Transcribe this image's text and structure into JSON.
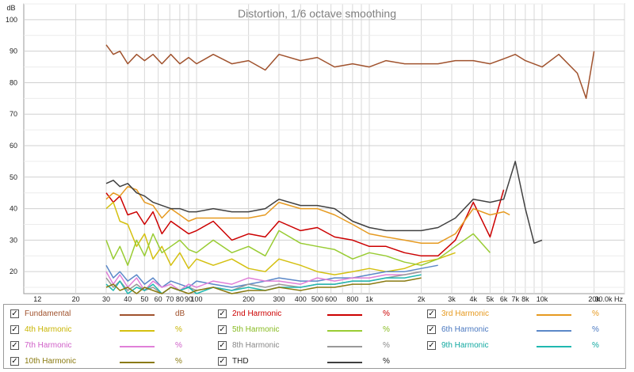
{
  "chart_data": {
    "type": "line",
    "title": "Distortion, 1/6 octave smoothing",
    "ylabel": "dB",
    "x_unit": "Hz",
    "x_scale": "log",
    "xlim": [
      10,
      30000
    ],
    "ylim": [
      13,
      105
    ],
    "grid": true,
    "x_ticks": [
      {
        "value": 12,
        "label": "12"
      },
      {
        "value": 20,
        "label": "20"
      },
      {
        "value": 30,
        "label": "30"
      },
      {
        "value": 40,
        "label": "40"
      },
      {
        "value": 50,
        "label": "50"
      },
      {
        "value": 60,
        "label": "60"
      },
      {
        "value": 70,
        "label": "70"
      },
      {
        "value": 80,
        "label": "80"
      },
      {
        "value": 90,
        "label": "90"
      },
      {
        "value": 100,
        "label": "100"
      },
      {
        "value": 200,
        "label": "200"
      },
      {
        "value": 300,
        "label": "300"
      },
      {
        "value": 400,
        "label": "400"
      },
      {
        "value": 500,
        "label": "500"
      },
      {
        "value": 600,
        "label": "600"
      },
      {
        "value": 800,
        "label": "800"
      },
      {
        "value": 1000,
        "label": "1k"
      },
      {
        "value": 2000,
        "label": "2k"
      },
      {
        "value": 3000,
        "label": "3k"
      },
      {
        "value": 4000,
        "label": "4k"
      },
      {
        "value": 5000,
        "label": "5k"
      },
      {
        "value": 6000,
        "label": "6k"
      },
      {
        "value": 7000,
        "label": "7k"
      },
      {
        "value": 8000,
        "label": "8k"
      },
      {
        "value": 10000,
        "label": "10k"
      },
      {
        "value": 20000,
        "label": "20k"
      },
      {
        "value": 30000,
        "label": "30.0k Hz"
      }
    ],
    "y_ticks": [
      {
        "value": 20,
        "label": "20"
      },
      {
        "value": 30,
        "label": "30"
      },
      {
        "value": 40,
        "label": "40"
      },
      {
        "value": 50,
        "label": "50"
      },
      {
        "value": 60,
        "label": "60"
      },
      {
        "value": 70,
        "label": "70"
      },
      {
        "value": 80,
        "label": "80"
      },
      {
        "value": 90,
        "label": "90"
      },
      {
        "value": 100,
        "label": "100"
      }
    ],
    "series": [
      {
        "name": "Fundamental",
        "unit": "dB",
        "color": "#a0522d",
        "x": [
          30,
          33,
          36,
          40,
          45,
          50,
          56,
          63,
          71,
          80,
          90,
          100,
          125,
          160,
          200,
          250,
          300,
          400,
          500,
          630,
          800,
          1000,
          1250,
          1600,
          2000,
          2500,
          3150,
          4000,
          5000,
          6300,
          7000,
          8000,
          10000,
          12500,
          16000,
          18000,
          20000
        ],
        "y": [
          92,
          89,
          90,
          86,
          89,
          87,
          89,
          86,
          89,
          86,
          88,
          86,
          89,
          86,
          87,
          84,
          89,
          87,
          88,
          85,
          86,
          85,
          87,
          86,
          86,
          86,
          87,
          87,
          86,
          88,
          89,
          87,
          85,
          89,
          83,
          75,
          90
        ]
      },
      {
        "name": "2nd Harmonic",
        "unit": "%",
        "color": "#cc0000",
        "x": [
          30,
          33,
          36,
          40,
          45,
          50,
          56,
          63,
          71,
          80,
          90,
          100,
          125,
          160,
          200,
          250,
          300,
          400,
          500,
          630,
          800,
          1000,
          1250,
          1600,
          2000,
          2500,
          3150,
          4000,
          5000,
          6000
        ],
        "y": [
          45,
          42,
          44,
          38,
          39,
          35,
          39,
          32,
          36,
          34,
          32,
          33,
          36,
          30,
          32,
          31,
          36,
          33,
          34,
          31,
          30,
          28,
          28,
          26,
          25,
          25,
          30,
          42,
          31,
          46
        ]
      },
      {
        "name": "3rd Harmonic",
        "unit": "%",
        "color": "#e69a20",
        "x": [
          30,
          33,
          36,
          40,
          45,
          50,
          56,
          63,
          71,
          80,
          90,
          100,
          125,
          160,
          200,
          250,
          300,
          400,
          500,
          630,
          800,
          1000,
          1250,
          1600,
          2000,
          2500,
          3150,
          4000,
          5000,
          6000,
          6500
        ],
        "y": [
          43,
          45,
          44,
          47,
          46,
          42,
          41,
          37,
          40,
          38,
          36,
          37,
          37,
          37,
          37,
          38,
          42,
          40,
          40,
          38,
          35,
          32,
          31,
          30,
          29,
          29,
          32,
          40,
          38,
          39,
          38
        ]
      },
      {
        "name": "4th Harmonic",
        "unit": "%",
        "color": "#d4c010",
        "x": [
          30,
          33,
          36,
          40,
          45,
          50,
          56,
          63,
          71,
          80,
          90,
          100,
          125,
          160,
          200,
          250,
          300,
          400,
          500,
          630,
          800,
          1000,
          1250,
          1600,
          2000,
          2500,
          3150
        ],
        "y": [
          40,
          42,
          36,
          35,
          28,
          32,
          24,
          28,
          22,
          26,
          21,
          24,
          22,
          24,
          21,
          20,
          24,
          22,
          20,
          19,
          20,
          21,
          20,
          21,
          23,
          24,
          26
        ]
      },
      {
        "name": "5th Harmonic",
        "unit": "%",
        "color": "#99cc33",
        "x": [
          30,
          33,
          36,
          40,
          45,
          50,
          56,
          63,
          71,
          80,
          90,
          100,
          125,
          160,
          200,
          250,
          300,
          400,
          500,
          630,
          800,
          1000,
          1250,
          1600,
          2000,
          2500,
          3150,
          4000,
          5000
        ],
        "y": [
          30,
          24,
          28,
          22,
          30,
          25,
          32,
          26,
          28,
          30,
          27,
          26,
          30,
          26,
          28,
          25,
          33,
          29,
          28,
          27,
          24,
          26,
          25,
          23,
          22,
          24,
          28,
          32,
          26
        ]
      },
      {
        "name": "6th Harmonic",
        "unit": "%",
        "color": "#5b88c8",
        "x": [
          30,
          33,
          36,
          40,
          45,
          50,
          56,
          63,
          71,
          80,
          90,
          100,
          125,
          160,
          200,
          250,
          300,
          400,
          500,
          630,
          800,
          1000,
          1250,
          1600,
          2000,
          2500
        ],
        "y": [
          22,
          18,
          20,
          17,
          19,
          16,
          18,
          15,
          17,
          16,
          15,
          17,
          16,
          15,
          16,
          17,
          18,
          17,
          17,
          18,
          18,
          19,
          20,
          20,
          21,
          22
        ]
      },
      {
        "name": "7th Harmonic",
        "unit": "%",
        "color": "#e080d8",
        "x": [
          30,
          33,
          36,
          40,
          45,
          50,
          56,
          63,
          71,
          80,
          90,
          100,
          125,
          160,
          200,
          250,
          300,
          400,
          500,
          630,
          800,
          1000,
          1250,
          1600,
          2000
        ],
        "y": [
          20,
          16,
          19,
          15,
          18,
          14,
          17,
          15,
          16,
          14,
          16,
          15,
          17,
          16,
          18,
          17,
          17,
          16,
          18,
          17,
          18,
          18,
          19,
          19,
          20
        ]
      },
      {
        "name": "8th Harmonic",
        "unit": "%",
        "color": "#999999",
        "x": [
          30,
          33,
          36,
          40,
          45,
          50,
          56,
          63,
          71,
          80,
          90,
          100,
          125,
          160,
          200,
          250,
          300,
          400,
          500,
          630,
          800,
          1000,
          1250,
          1600,
          2000
        ],
        "y": [
          18,
          15,
          17,
          14,
          16,
          14,
          15,
          13,
          15,
          14,
          15,
          14,
          15,
          14,
          16,
          15,
          16,
          15,
          16,
          16,
          17,
          17,
          18,
          19,
          20
        ]
      },
      {
        "name": "9th Harmonic",
        "unit": "%",
        "color": "#20b8b0",
        "x": [
          30,
          33,
          36,
          40,
          45,
          50,
          56,
          63,
          71,
          80,
          90,
          100,
          125,
          160,
          200,
          250,
          300,
          400,
          500,
          630,
          800,
          1000,
          1250,
          1600,
          2000
        ],
        "y": [
          16,
          14,
          17,
          13,
          15,
          14,
          16,
          13,
          15,
          14,
          15,
          13,
          15,
          14,
          15,
          14,
          15,
          15,
          16,
          16,
          17,
          17,
          18,
          18,
          19
        ]
      },
      {
        "name": "10th Harmonic",
        "unit": "%",
        "color": "#8a7a10",
        "x": [
          30,
          33,
          36,
          40,
          45,
          50,
          56,
          63,
          71,
          80,
          90,
          100,
          125,
          160,
          200,
          250,
          300,
          400,
          500,
          630,
          800,
          1000,
          1250,
          1600,
          2000
        ],
        "y": [
          15,
          16,
          14,
          15,
          13,
          15,
          14,
          13,
          15,
          14,
          13,
          14,
          15,
          13,
          14,
          14,
          15,
          14,
          15,
          15,
          16,
          16,
          17,
          17,
          18
        ]
      },
      {
        "name": "THD",
        "unit": "%",
        "color": "#404040",
        "x": [
          30,
          33,
          36,
          40,
          45,
          50,
          56,
          63,
          71,
          80,
          90,
          100,
          125,
          160,
          200,
          250,
          300,
          400,
          500,
          630,
          800,
          1000,
          1250,
          1600,
          2000,
          2500,
          3150,
          4000,
          5000,
          6000,
          7000,
          8000,
          9000,
          10000
        ],
        "y": [
          48,
          49,
          47,
          48,
          45,
          44,
          42,
          41,
          40,
          40,
          39,
          39,
          40,
          39,
          39,
          40,
          43,
          41,
          41,
          40,
          36,
          34,
          33,
          33,
          33,
          34,
          37,
          43,
          42,
          43,
          55,
          40,
          29,
          30
        ]
      }
    ]
  },
  "legend": {
    "items": [
      {
        "label": "Fundamental",
        "unit": "dB",
        "checked": "✓",
        "color": "#a0522d",
        "text_color": "#a0522d"
      },
      {
        "label": "2nd Harmonic",
        "unit": "%",
        "checked": "✓",
        "color": "#cc0000",
        "text_color": "#cc0000"
      },
      {
        "label": "3rd Harmonic",
        "unit": "%",
        "checked": "✓",
        "color": "#e69a20",
        "text_color": "#e69a20"
      },
      {
        "label": "4th Harmonic",
        "unit": "%",
        "checked": "✓",
        "color": "#d4c010",
        "text_color": "#c8b400"
      },
      {
        "label": "5th Harmonic",
        "unit": "%",
        "checked": "✓",
        "color": "#99cc33",
        "text_color": "#88bb22"
      },
      {
        "label": "6th Harmonic",
        "unit": "%",
        "checked": "✓",
        "color": "#5b88c8",
        "text_color": "#4a78c0"
      },
      {
        "label": "7th Harmonic",
        "unit": "%",
        "checked": "✓",
        "color": "#e080d8",
        "text_color": "#d060c8"
      },
      {
        "label": "8th Harmonic",
        "unit": "%",
        "checked": "✓",
        "color": "#999999",
        "text_color": "#888888"
      },
      {
        "label": "9th Harmonic",
        "unit": "%",
        "checked": "✓",
        "color": "#20b8b0",
        "text_color": "#10a8a0"
      },
      {
        "label": "10th Harmonic",
        "unit": "%",
        "checked": "✓",
        "color": "#8a7a10",
        "text_color": "#8a7a10"
      },
      {
        "label": "THD",
        "unit": "%",
        "checked": "✓",
        "color": "#404040",
        "text_color": "#222222"
      }
    ]
  }
}
